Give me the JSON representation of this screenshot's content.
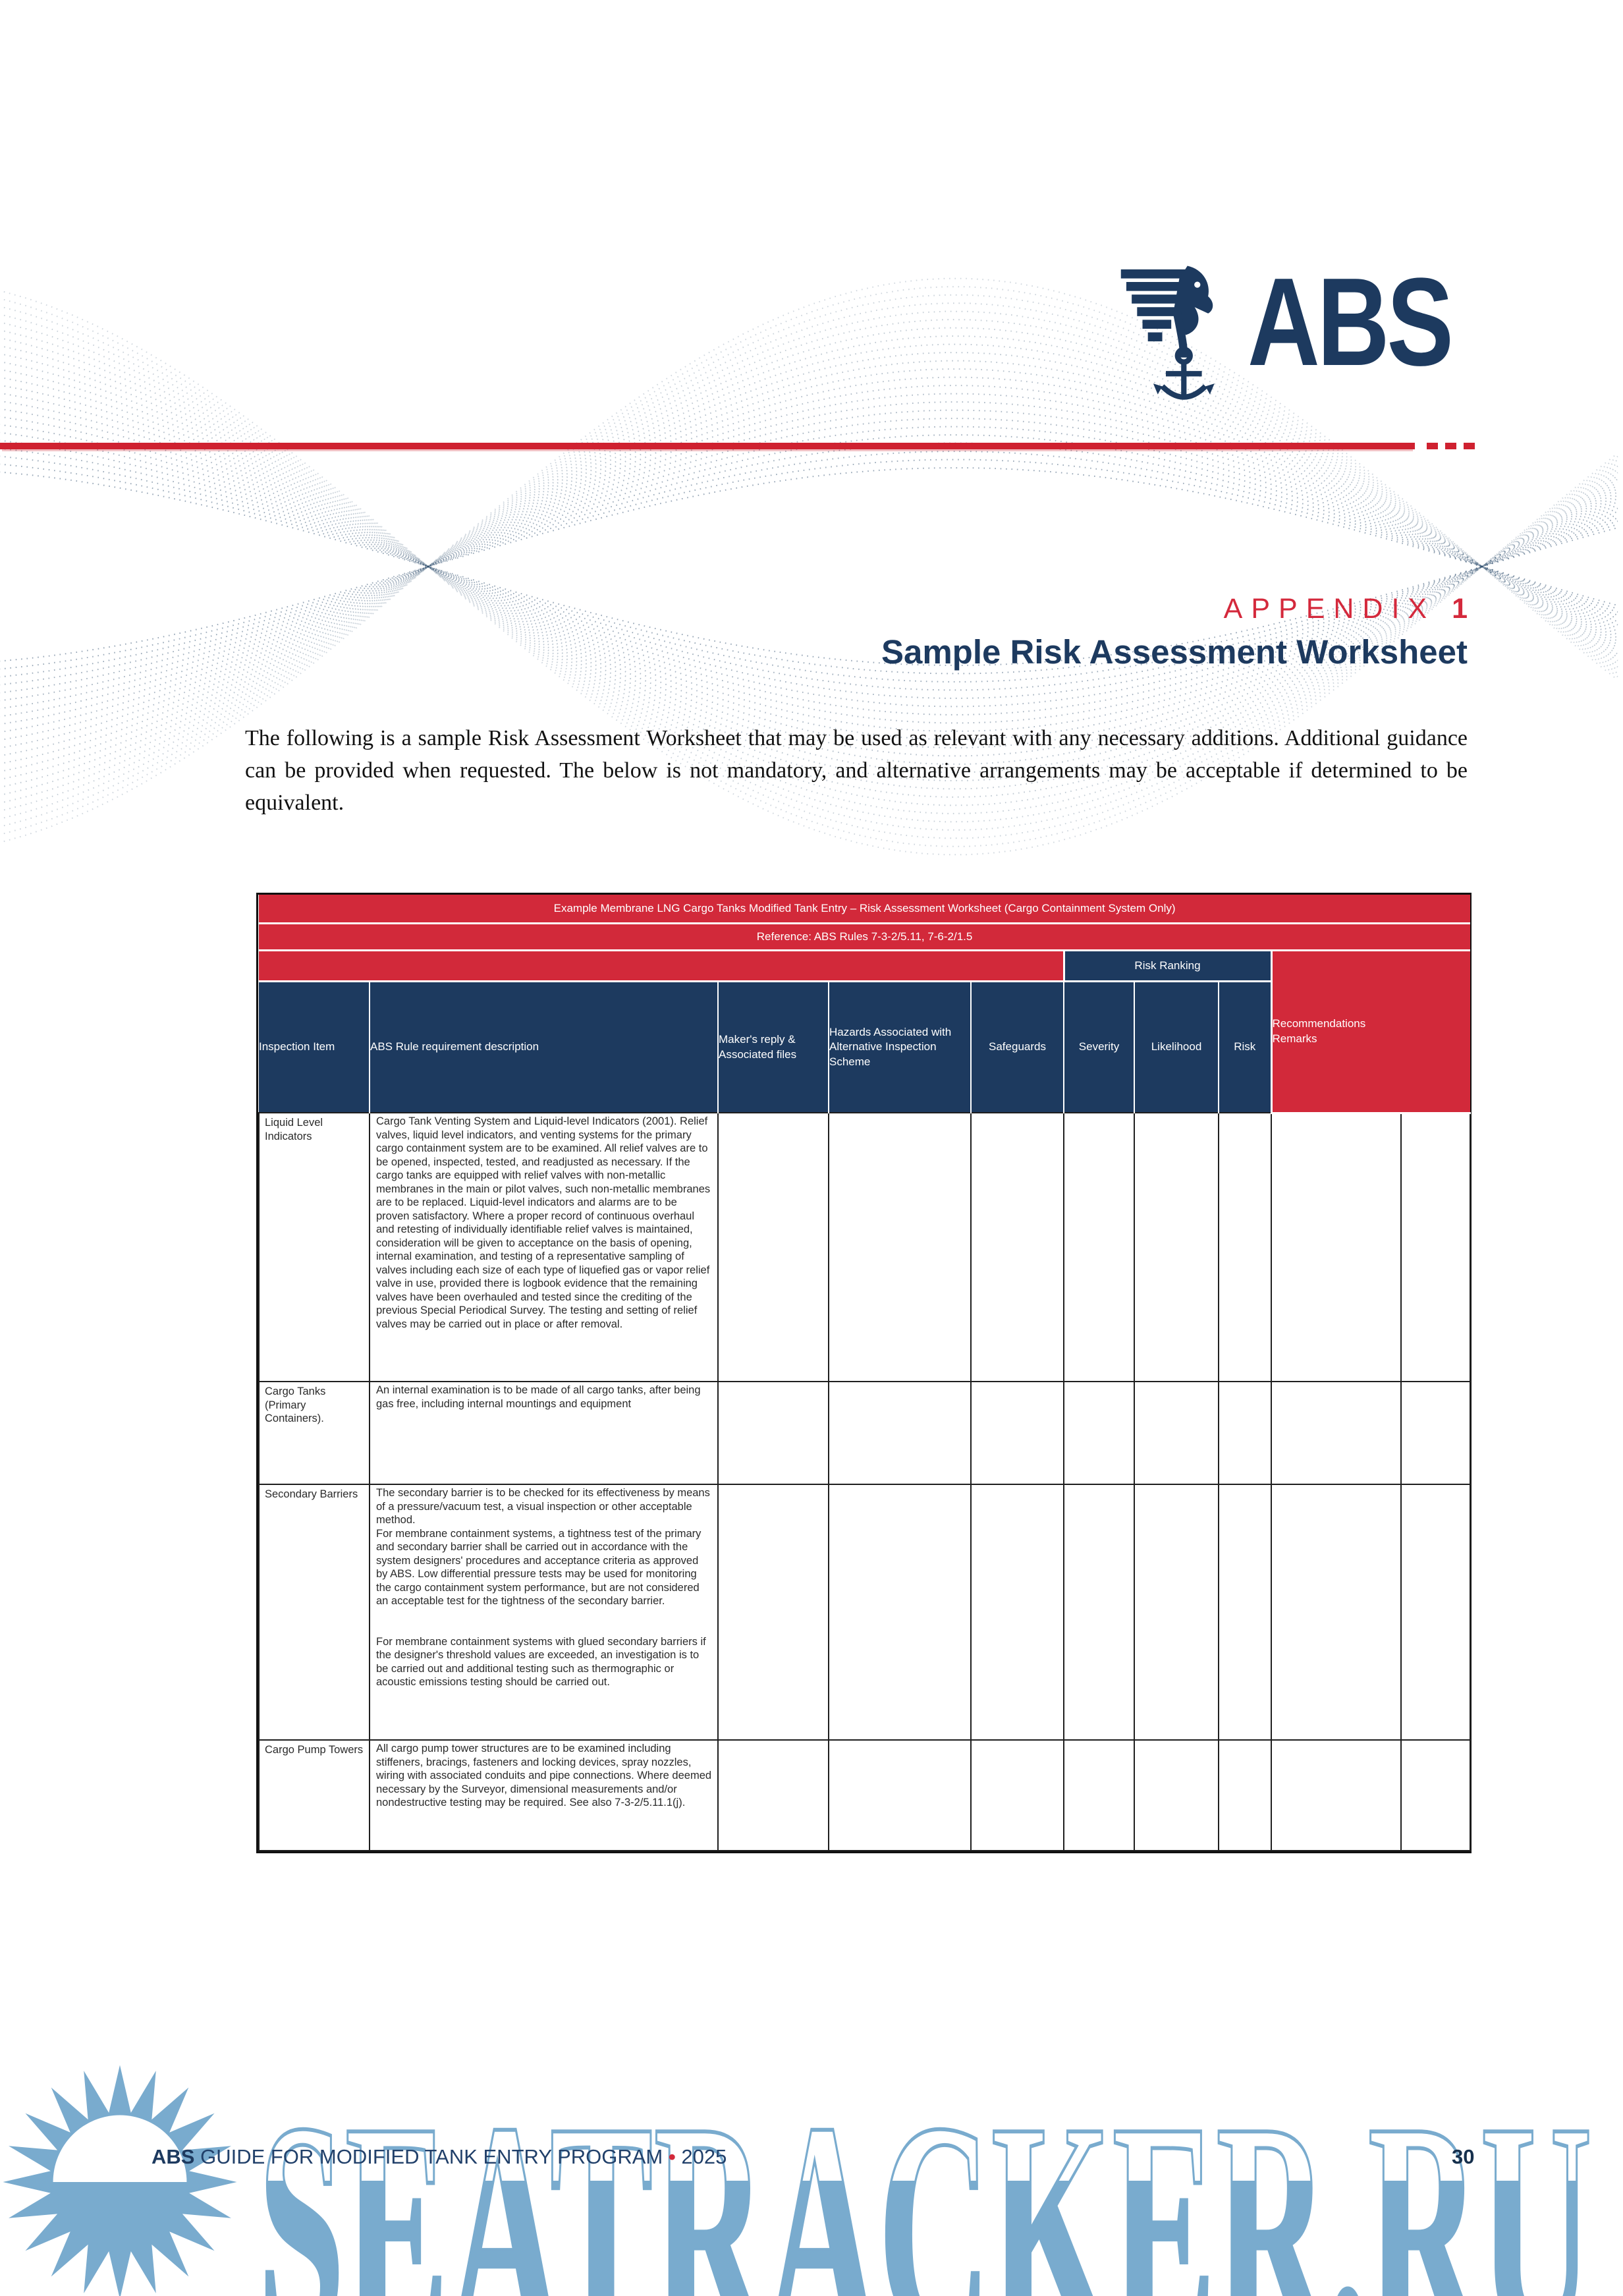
{
  "colors": {
    "brand_navy": "#1d3a5f",
    "brand_red": "#d2293a",
    "watermark_blue": "#79abce"
  },
  "logo": {
    "wordmark": "ABS"
  },
  "heading": {
    "appendix_label": "APPENDIX",
    "appendix_number": "1",
    "title": "Sample Risk Assessment Worksheet"
  },
  "intro": "The following is a sample Risk Assessment Worksheet that may be used as relevant with any necessary additions. Additional guidance can be provided when requested. The below is not mandatory, and alternative arrangements may be acceptable if determined to be equivalent.",
  "table": {
    "title": "Example Membrane LNG Cargo Tanks Modified Tank Entry – Risk Assessment Worksheet (Cargo Containment System Only)",
    "reference": "Reference: ABS Rules 7-3-2/5.11, 7-6-2/1.5",
    "risk_ranking_label": "Risk Ranking",
    "recommendations_label": "Recommendations\nRemarks",
    "columns": [
      "Inspection Item",
      "ABS Rule requirement description",
      "Maker's reply & Associated files",
      "Hazards Associated with Alternative Inspection Scheme",
      "Safeguards",
      "Severity",
      "Likelihood",
      "Risk"
    ],
    "rows": [
      {
        "item": "Liquid Level Indicators",
        "description": "Cargo Tank Venting System and Liquid-level Indicators (2001). Relief valves, liquid level indicators, and venting systems for the primary cargo containment system are to be examined. All relief valves are to be opened, inspected, tested, and readjusted as necessary. If the cargo tanks are equipped with relief valves with non-metallic membranes in the main or pilot valves, such non-metallic membranes are to be replaced. Liquid-level indicators and alarms are to be proven satisfactory. Where a proper record of continuous overhaul and retesting of individually identifiable relief valves is maintained, consideration will be given to acceptance on the basis of opening, internal examination, and testing of a representative sampling of valves including each size of each type of liquefied gas or vapor relief valve in use, provided there is logbook evidence that the remaining valves have been overhauled and tested since the crediting of the previous Special Periodical Survey. The testing and setting of relief valves may be carried out in place or after removal."
      },
      {
        "item": "Cargo Tanks (Primary Containers).",
        "description": "An internal examination is to be made of all cargo tanks, after being gas free, including internal mountings and equipment"
      },
      {
        "item": "Secondary Barriers",
        "description": "The secondary barrier is to be checked for its effectiveness by means of a pressure/vacuum test, a visual inspection or other acceptable method.\nFor membrane containment systems, a tightness test of the primary and secondary barrier shall be carried out in accordance with the system designers' procedures and acceptance criteria as approved by ABS. Low differential pressure tests may be used for monitoring the cargo containment system performance, but are not considered an acceptable test for the tightness of the secondary barrier.\n\n\nFor membrane containment systems with glued secondary barriers if the designer's threshold values are exceeded, an investigation is to be carried out and additional testing such as thermographic or acoustic emissions testing should be carried out."
      },
      {
        "item": "Cargo Pump Towers",
        "description": "All cargo pump tower structures are to be examined including stiffeners, bracings, fasteners and locking devices, spray nozzles, wiring with associated conduits and pipe connections. Where deemed necessary by the Surveyor, dimensional measurements and/or nondestructive testing may be required. See also 7-3-2/5.11.1(j)."
      }
    ]
  },
  "footer": {
    "brand": "ABS",
    "text": "GUIDE FOR MODIFIED TANK ENTRY PROGRAM",
    "bullet": "•",
    "year": "2025",
    "page_number": "30"
  },
  "watermark": {
    "text": "SEATRACKER.RU"
  }
}
